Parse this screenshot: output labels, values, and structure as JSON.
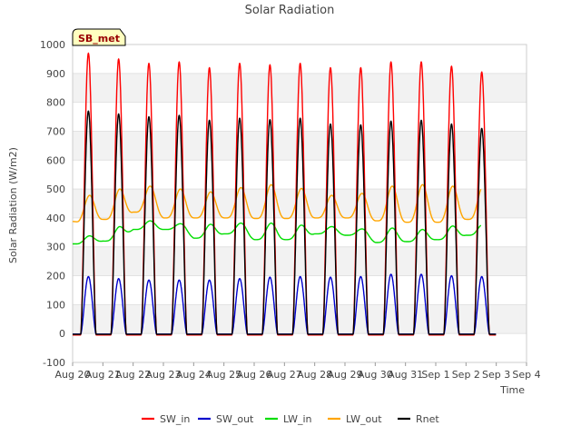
{
  "chart_data": {
    "type": "line",
    "title": "Solar Radiation",
    "xlabel": "Time",
    "ylabel": "Solar Radiation (W/m2)",
    "station_label": "SB_met",
    "ylim": [
      -100,
      1000
    ],
    "yticks": [
      -100,
      0,
      100,
      200,
      300,
      400,
      500,
      600,
      700,
      800,
      900,
      1000
    ],
    "xlim": [
      "2023-08-20",
      "2023-09-04"
    ],
    "xticks": [
      "2023-08-20",
      "2023-08-21",
      "2023-08-22",
      "2023-08-23",
      "2023-08-24",
      "2023-08-25",
      "2023-08-26",
      "2023-08-27",
      "2023-08-28",
      "2023-08-29",
      "2023-08-30",
      "2023-08-31",
      "2023-09-01",
      "2023-09-02",
      "2023-09-03",
      "2023-09-04"
    ],
    "xticklabels": [
      "Aug 20",
      "Aug 21",
      "Aug 22",
      "Aug 23",
      "Aug 24",
      "Aug 25",
      "Aug 26",
      "Aug 27",
      "Aug 28",
      "Aug 29",
      "Aug 30",
      "Aug 31",
      "Sep 1",
      "Sep 2",
      "Sep 3",
      "Sep 4"
    ],
    "grid": "horizontal-bands",
    "legend_position": "bottom",
    "days": [
      "2023-08-20",
      "2023-08-21",
      "2023-08-22",
      "2023-08-23",
      "2023-08-24",
      "2023-08-25",
      "2023-08-26",
      "2023-08-27",
      "2023-08-28",
      "2023-08-29",
      "2023-08-30",
      "2023-08-31",
      "2023-09-01",
      "2023-09-02",
      "2023-09-03"
    ],
    "series": [
      {
        "name": "SW_in",
        "color": "#ff0000",
        "daily_peak": [
          970,
          950,
          935,
          940,
          920,
          935,
          930,
          935,
          920,
          920,
          940,
          940,
          925,
          905
        ],
        "night_value": -5
      },
      {
        "name": "SW_out",
        "color": "#0000cc",
        "daily_peak": [
          197,
          190,
          185,
          185,
          185,
          190,
          195,
          197,
          195,
          197,
          205,
          205,
          200,
          197
        ],
        "night_value": -2
      },
      {
        "name": "LW_in",
        "color": "#00dd00",
        "night_value_start": 310,
        "daily_peak": [
          338,
          370,
          390,
          380,
          378,
          382,
          382,
          375,
          370,
          362,
          365,
          360,
          372,
          378
        ],
        "daily_min": [
          310,
          320,
          360,
          360,
          330,
          345,
          325,
          325,
          345,
          340,
          315,
          318,
          325,
          340
        ]
      },
      {
        "name": "LW_out",
        "color": "#ffa500",
        "night_value_start": 388,
        "daily_peak": [
          478,
          500,
          510,
          500,
          490,
          505,
          515,
          502,
          478,
          485,
          510,
          515,
          510,
          510
        ],
        "daily_min": [
          385,
          395,
          420,
          400,
          400,
          400,
          398,
          398,
          400,
          400,
          390,
          385,
          385,
          395
        ]
      },
      {
        "name": "Rnet",
        "color": "#000000",
        "daily_peak": [
          770,
          760,
          750,
          755,
          738,
          745,
          740,
          745,
          725,
          722,
          735,
          738,
          725,
          710
        ],
        "night_value": -3
      }
    ]
  }
}
